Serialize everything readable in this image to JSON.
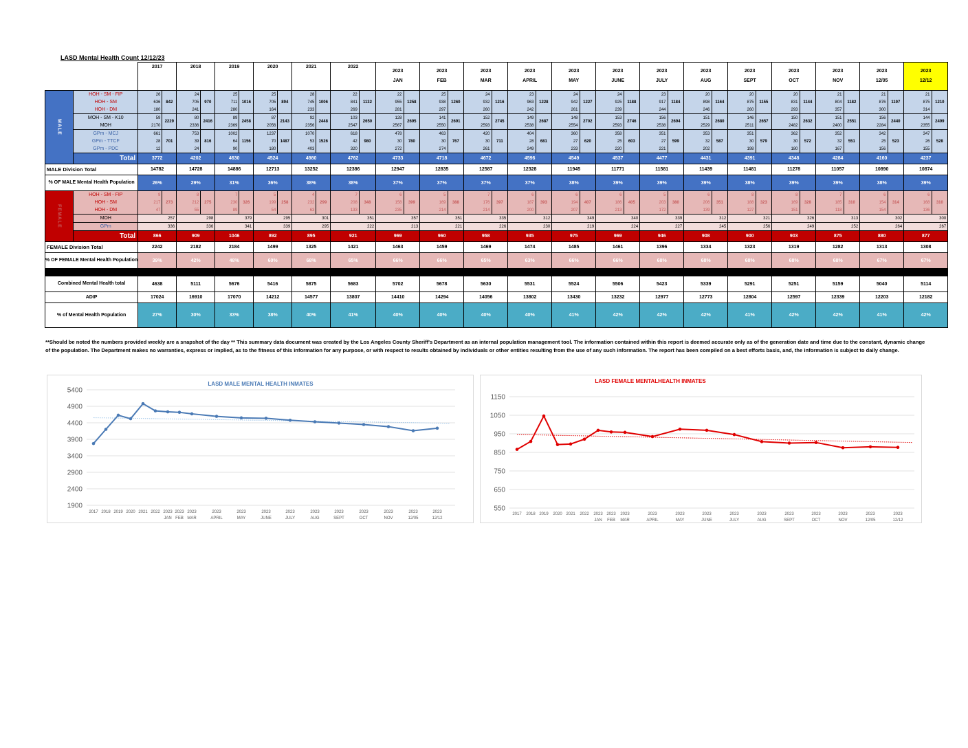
{
  "title": "LASD Mental Health Count 12/12/23",
  "columns": [
    [
      "2017",
      ""
    ],
    [
      "2018",
      ""
    ],
    [
      "2019",
      ""
    ],
    [
      "2020",
      ""
    ],
    [
      "2021",
      ""
    ],
    [
      "2022",
      ""
    ],
    [
      "2023",
      "JAN"
    ],
    [
      "2023",
      "FEB"
    ],
    [
      "2023",
      "MAR"
    ],
    [
      "2023",
      "APRIL"
    ],
    [
      "2023",
      "MAY"
    ],
    [
      "2023",
      "JUNE"
    ],
    [
      "2023",
      "JULY"
    ],
    [
      "2023",
      "AUG"
    ],
    [
      "2023",
      "SEPT"
    ],
    [
      "2023",
      "OCT"
    ],
    [
      "2023",
      "NOV"
    ],
    [
      "2023",
      "12/05"
    ],
    [
      "2023",
      "12/12"
    ]
  ],
  "male": {
    "side_label": "MALE",
    "groups": [
      {
        "labels": [
          "HOH - SM - FIP",
          "HOH - SM",
          "HOH - DM"
        ],
        "values": [
          [
            26,
            636,
            180
          ],
          [
            24,
            705,
            241
          ],
          [
            25,
            711,
            280
          ],
          [
            25,
            705,
            164
          ],
          [
            28,
            745,
            233
          ],
          [
            22,
            841,
            269
          ],
          [
            22,
            955,
            281
          ],
          [
            25,
            938,
            297
          ],
          [
            24,
            932,
            260
          ],
          [
            23,
            963,
            242
          ],
          [
            24,
            942,
            261
          ],
          [
            24,
            925,
            239
          ],
          [
            23,
            917,
            244
          ],
          [
            20,
            898,
            246
          ],
          [
            20,
            875,
            260
          ],
          [
            20,
            831,
            293
          ],
          [
            21,
            804,
            357
          ],
          [
            21,
            876,
            300
          ],
          [
            21,
            875,
            314
          ]
        ],
        "subtotals": [
          842,
          970,
          1016,
          894,
          1006,
          1132,
          1258,
          1260,
          1216,
          1228,
          1227,
          1188,
          1184,
          1164,
          1155,
          1144,
          1182,
          1197,
          1210
        ]
      },
      {
        "labels": [
          "MOH - SM - K10",
          "MOH"
        ],
        "values": [
          [
            59,
            2170
          ],
          [
            80,
            2336
          ],
          [
            89,
            2369
          ],
          [
            87,
            2056
          ],
          [
            92,
            2356
          ],
          [
            103,
            2547
          ],
          [
            128,
            2567
          ],
          [
            141,
            2550
          ],
          [
            152,
            2593
          ],
          [
            149,
            2538
          ],
          [
            148,
            2554
          ],
          [
            153,
            2593
          ],
          [
            156,
            2538
          ],
          [
            151,
            2529
          ],
          [
            146,
            2511
          ],
          [
            150,
            2482
          ],
          [
            151,
            2400
          ],
          [
            156,
            2284
          ],
          [
            144,
            2355
          ]
        ],
        "subtotals": [
          2229,
          2416,
          2458,
          2143,
          2448,
          2650,
          2695,
          2691,
          2745,
          2687,
          2702,
          2746,
          2694,
          2680,
          2657,
          2632,
          2551,
          2440,
          2499
        ]
      },
      {
        "labels": [
          "GPm - MCJ",
          "GPm - TTCF",
          "GPm - PDC"
        ],
        "values": [
          [
            661,
            28,
            12
          ],
          [
            753,
            39,
            24
          ],
          [
            1002,
            64,
            90
          ],
          [
            1237,
            70,
            180
          ],
          [
            1070,
            53,
            403
          ],
          [
            618,
            42,
            320
          ],
          [
            478,
            30,
            272
          ],
          [
            463,
            30,
            274
          ],
          [
            420,
            30,
            261
          ],
          [
            404,
            28,
            249
          ],
          [
            360,
            27,
            233
          ],
          [
            358,
            25,
            220
          ],
          [
            351,
            27,
            221
          ],
          [
            353,
            32,
            202
          ],
          [
            351,
            30,
            198
          ],
          [
            362,
            30,
            180
          ],
          [
            352,
            32,
            167
          ],
          [
            342,
            25,
            156
          ],
          [
            347,
            26,
            155
          ]
        ],
        "subtotals": [
          701,
          816,
          1156,
          1487,
          1526,
          980,
          780,
          767,
          711,
          681,
          620,
          603,
          599,
          587,
          579,
          572,
          551,
          523,
          528
        ]
      }
    ],
    "total_label": "Total",
    "totals": [
      3772,
      4202,
      4630,
      4524,
      4980,
      4762,
      4733,
      4718,
      4672,
      4596,
      4549,
      4537,
      4477,
      4431,
      4391,
      4348,
      4284,
      4160,
      4237
    ],
    "division_label": "MALE Division Total",
    "division": [
      14782,
      14728,
      14886,
      12713,
      13252,
      12386,
      12947,
      12835,
      12587,
      12328,
      11945,
      11771,
      11581,
      11439,
      11481,
      11278,
      11057,
      10890,
      10874
    ],
    "pct_label": "% OF MALE Mental Health Population",
    "pct": [
      "26%",
      "29%",
      "31%",
      "36%",
      "38%",
      "38%",
      "37%",
      "37%",
      "37%",
      "37%",
      "38%",
      "39%",
      "39%",
      "39%",
      "38%",
      "39%",
      "39%",
      "38%",
      "39%"
    ]
  },
  "female": {
    "side_label": "FEMALE",
    "groups": [
      {
        "labels": [
          "HOH - SM - FIP",
          "HOH - SM",
          "HOH - DM"
        ],
        "values": [
          [
            9,
            217,
            47
          ],
          [
            8,
            212,
            55
          ],
          [
            7,
            230,
            89
          ],
          [
            5,
            199,
            54
          ],
          [
            4,
            232,
            63
          ],
          [
            7,
            208,
            133
          ],
          [
            6,
            158,
            235
          ],
          [
            5,
            169,
            214
          ],
          [
            7,
            176,
            214
          ],
          [
            6,
            187,
            200
          ],
          [
            6,
            194,
            207
          ],
          [
            6,
            186,
            213
          ],
          [
            5,
            203,
            172
          ],
          [
            6,
            206,
            139
          ],
          [
            8,
            188,
            127
          ],
          [
            8,
            169,
            151
          ],
          [
            7,
            185,
            118
          ],
          [
            6,
            154,
            154
          ],
          [
            6,
            168,
            136
          ]
        ],
        "subtotals": [
          273,
          275,
          326,
          258,
          299,
          348,
          399,
          388,
          397,
          393,
          407,
          405,
          380,
          351,
          323,
          328,
          310,
          314,
          310
        ]
      },
      {
        "labels": [
          "MOH"
        ],
        "values": [
          [
            257
          ],
          [
            298
          ],
          [
            379
          ],
          [
            295
          ],
          [
            301
          ],
          [
            351
          ],
          [
            357
          ],
          [
            351
          ],
          [
            335
          ],
          [
            312
          ],
          [
            349
          ],
          [
            340
          ],
          [
            339
          ],
          [
            312
          ],
          [
            321
          ],
          [
            326
          ],
          [
            313
          ],
          [
            302
          ],
          [
            300
          ]
        ],
        "subtotals": null
      },
      {
        "labels": [
          "GPm"
        ],
        "values": [
          [
            336
          ],
          [
            336
          ],
          [
            341
          ],
          [
            339
          ],
          [
            295
          ],
          [
            222
          ],
          [
            213
          ],
          [
            221
          ],
          [
            226
          ],
          [
            230
          ],
          [
            219
          ],
          [
            224
          ],
          [
            227
          ],
          [
            245
          ],
          [
            256
          ],
          [
            249
          ],
          [
            252
          ],
          [
            264
          ],
          [
            267
          ]
        ],
        "subtotals": null
      }
    ],
    "total_label": "Total",
    "totals": [
      866,
      909,
      1046,
      892,
      895,
      921,
      969,
      960,
      958,
      935,
      975,
      969,
      946,
      908,
      900,
      903,
      875,
      880,
      877
    ],
    "division_label": "FEMALE Division Total",
    "division": [
      2242,
      2182,
      2184,
      1499,
      1325,
      1421,
      1463,
      1459,
      1469,
      1474,
      1485,
      1461,
      1396,
      1334,
      1323,
      1319,
      1282,
      1313,
      1308
    ],
    "pct_label": "% OF FEMALE Mental Health Population",
    "pct": [
      "39%",
      "42%",
      "48%",
      "60%",
      "68%",
      "65%",
      "66%",
      "66%",
      "65%",
      "63%",
      "66%",
      "66%",
      "68%",
      "68%",
      "68%",
      "68%",
      "68%",
      "67%",
      "67%"
    ]
  },
  "combined_label": "Combined Mental Health total",
  "combined": [
    4638,
    5111,
    5676,
    5416,
    5875,
    5683,
    5702,
    5678,
    5630,
    5531,
    5524,
    5506,
    5423,
    5339,
    5291,
    5251,
    5159,
    5040,
    5114
  ],
  "adip_label": "ADIP",
  "adip": [
    17024,
    16910,
    17070,
    14212,
    14577,
    13807,
    14410,
    14294,
    14056,
    13802,
    13430,
    13232,
    12977,
    12773,
    12804,
    12597,
    12339,
    12203,
    12182
  ],
  "total_pct_label": "% of Mental Health Population",
  "total_pct": [
    "27%",
    "30%",
    "33%",
    "38%",
    "40%",
    "41%",
    "40%",
    "40%",
    "40%",
    "40%",
    "41%",
    "42%",
    "42%",
    "42%",
    "41%",
    "42%",
    "42%",
    "41%",
    "42%"
  ],
  "note": "**Should be noted the numbers provided weekly are a snapshot of the day ** This summary data document was created by the Los Angeles County Sheriff's Department as an internal population management tool.  The information contained within this report is deemed accurate only as of the generation date and time due to the constant, dynamic change of the population.  The Department makes no warranties, express or implied, as to the fitness of this information for any purpose, or with respect to results obtained by individuals or other entities resulting from the use of any such information.  The report has been compiled on a best efforts basis, and, the information is subject to daily change.",
  "chart_data": [
    {
      "type": "line",
      "title": "LASD MALE MENTAL HEALTH INMATES",
      "x": [
        [
          "2017"
        ],
        [
          "2018"
        ],
        [
          "2019"
        ],
        [
          "2020"
        ],
        [
          "2021"
        ],
        [
          "2022"
        ],
        [
          "2023",
          "JAN"
        ],
        [
          "2023",
          "FEB"
        ],
        [
          "2023",
          "MAR"
        ],
        [
          "2023",
          "APRIL"
        ],
        [
          "2023",
          "MAY"
        ],
        [
          "2023",
          "JUNE"
        ],
        [
          "2023",
          "JULY"
        ],
        [
          "2023",
          "AUG"
        ],
        [
          "2023",
          "SEPT"
        ],
        [
          "2023",
          "OCT"
        ],
        [
          "2023",
          "NOV"
        ],
        [
          "2023",
          "12/05"
        ],
        [
          "2023",
          "12/12"
        ]
      ],
      "values": [
        3772,
        4202,
        4630,
        4524,
        4980,
        4762,
        4733,
        4718,
        4672,
        4596,
        4549,
        4537,
        4477,
        4431,
        4391,
        4348,
        4284,
        4160,
        4237
      ],
      "ylim": [
        1900,
        5400
      ],
      "yticks": [
        1900,
        2400,
        2900,
        3400,
        3900,
        4400,
        4900,
        5400
      ],
      "trendline": true,
      "grid": true,
      "color": "#4a7ab5",
      "trend_color": "#9fc5e8"
    },
    {
      "type": "line",
      "title": "LASD FEMALE MENTALHEALTH INMATES",
      "x": [
        [
          "2017"
        ],
        [
          "2018"
        ],
        [
          "2019"
        ],
        [
          "2020"
        ],
        [
          "2021"
        ],
        [
          "2022"
        ],
        [
          "2023",
          "JAN"
        ],
        [
          "2023",
          "FEB"
        ],
        [
          "2023",
          "MAR"
        ],
        [
          "2023",
          "APRIL"
        ],
        [
          "2023",
          "MAY"
        ],
        [
          "2023",
          "JUNE"
        ],
        [
          "2023",
          "JULY"
        ],
        [
          "2023",
          "AUG"
        ],
        [
          "2023",
          "SEPT"
        ],
        [
          "2023",
          "OCT"
        ],
        [
          "2023",
          "NOV"
        ],
        [
          "2023",
          "12/05"
        ],
        [
          "2023",
          "12/12"
        ]
      ],
      "values": [
        866,
        909,
        1046,
        892,
        895,
        921,
        969,
        960,
        958,
        935,
        975,
        969,
        946,
        908,
        900,
        903,
        875,
        880,
        877
      ],
      "ylim": [
        550,
        1150
      ],
      "yticks": [
        550,
        650,
        750,
        850,
        950,
        1050,
        1150
      ],
      "trendline": true,
      "grid": true,
      "color": "#e00000",
      "trend_color": "#e00000"
    }
  ]
}
